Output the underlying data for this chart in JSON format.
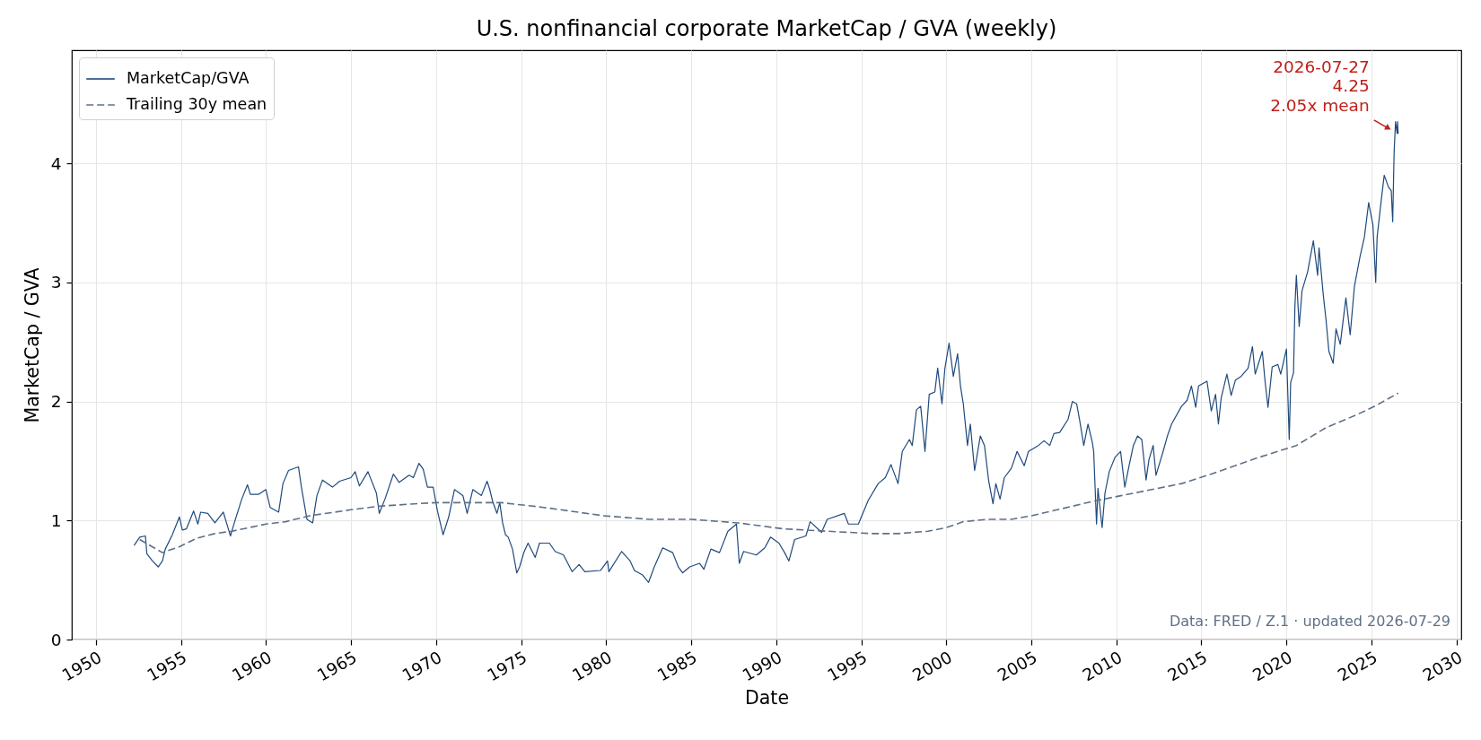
{
  "chart_data": {
    "type": "line",
    "title": "U.S. nonfinancial corporate MarketCap / GVA (weekly)",
    "xlabel": "Date",
    "ylabel": "MarketCap / GVA",
    "xlim": [
      "1948-08-03",
      "2030-04-12"
    ],
    "ylim": [
      0,
      4.95
    ],
    "xticks": [
      "1950",
      "1955",
      "1960",
      "1965",
      "1970",
      "1975",
      "1980",
      "1985",
      "1990",
      "1995",
      "2000",
      "2005",
      "2010",
      "2015",
      "2020",
      "2025",
      "2030"
    ],
    "yticks": [
      0,
      1,
      2,
      3,
      4
    ],
    "grid": true,
    "legend": "top left",
    "series": [
      {
        "name": "MarketCap/GVA",
        "color": "#1f4a7c",
        "line_style": "solid",
        "x": [
          "1952-04",
          "1952-08",
          "1952-12",
          "1953-01",
          "1953-05",
          "1953-09",
          "1953-12",
          "1954-02",
          "1954-07",
          "1954-12",
          "1955-02",
          "1955-05",
          "1955-10",
          "1956-01",
          "1956-03",
          "1956-08",
          "1957-01",
          "1957-07",
          "1957-12",
          "1958-03",
          "1958-08",
          "1958-12",
          "1959-02",
          "1959-08",
          "1960-01",
          "1960-04",
          "1960-10",
          "1961-01",
          "1961-05",
          "1961-12",
          "1962-02",
          "1962-06",
          "1962-10",
          "1963-01",
          "1963-05",
          "1963-12",
          "1964-05",
          "1965-01",
          "1965-04",
          "1965-07",
          "1966-01",
          "1966-07",
          "1966-09",
          "1967-01",
          "1967-07",
          "1967-11",
          "1968-06",
          "1968-09",
          "1969-01",
          "1969-04",
          "1969-07",
          "1969-11",
          "1970-02",
          "1970-06",
          "1970-10",
          "1971-02",
          "1971-08",
          "1971-11",
          "1972-03",
          "1972-09",
          "1973-01",
          "1973-03",
          "1973-05",
          "1973-08",
          "1973-10",
          "1973-12",
          "1974-02",
          "1974-04",
          "1974-07",
          "1974-10",
          "1974-12",
          "1975-03",
          "1975-06",
          "1975-11",
          "1976-02",
          "1976-09",
          "1977-01",
          "1977-07",
          "1978-01",
          "1978-06",
          "1978-10",
          "1979-09",
          "1980-02",
          "1980-03",
          "1980-12",
          "1981-06",
          "1981-09",
          "1982-03",
          "1982-07",
          "1982-11",
          "1983-05",
          "1983-12",
          "1984-04",
          "1984-07",
          "1984-12",
          "1985-07",
          "1985-10",
          "1986-03",
          "1986-09",
          "1987-03",
          "1987-09",
          "1987-11",
          "1988-02",
          "1988-11",
          "1989-05",
          "1989-09",
          "1990-03",
          "1990-07",
          "1990-10",
          "1991-02",
          "1991-10",
          "1992-01",
          "1992-09",
          "1993-01",
          "1994-01",
          "1994-04",
          "1994-11",
          "1995-06",
          "1996-01",
          "1996-06",
          "1996-10",
          "1997-03",
          "1997-06",
          "1997-11",
          "1998-01",
          "1998-04",
          "1998-07",
          "1998-10",
          "1999-01",
          "1999-05",
          "1999-07",
          "1999-10",
          "1999-12",
          "2000-03",
          "2000-06",
          "2000-09",
          "2000-11",
          "2001-01",
          "2001-04",
          "2001-06",
          "2001-09",
          "2002-01",
          "2002-04",
          "2002-07",
          "2002-10",
          "2002-12",
          "2003-03",
          "2003-06",
          "2003-11",
          "2004-03",
          "2004-08",
          "2004-11",
          "2005-06",
          "2005-10",
          "2006-02",
          "2006-05",
          "2006-09",
          "2007-03",
          "2007-06",
          "2007-09",
          "2007-11",
          "2008-02",
          "2008-05",
          "2008-08",
          "2008-09",
          "2008-11",
          "2008-12",
          "2009-03",
          "2009-05",
          "2009-08",
          "2009-12",
          "2010-04",
          "2010-07",
          "2010-10",
          "2011-01",
          "2011-04",
          "2011-07",
          "2011-10",
          "2011-12",
          "2012-03",
          "2012-05",
          "2012-10",
          "2013-01",
          "2013-04",
          "2013-11",
          "2014-03",
          "2014-06",
          "2014-09",
          "2014-11",
          "2015-05",
          "2015-08",
          "2015-11",
          "2016-01",
          "2016-03",
          "2016-07",
          "2016-10",
          "2017-01",
          "2017-05",
          "2017-10",
          "2018-01",
          "2018-03",
          "2018-08",
          "2018-10",
          "2018-12",
          "2019-03",
          "2019-07",
          "2019-09",
          "2020-01",
          "2020-03",
          "2020-04",
          "2020-06",
          "2020-07",
          "2020-08",
          "2020-10",
          "2020-12",
          "2021-04",
          "2021-08",
          "2021-11",
          "2021-12",
          "2022-03",
          "2022-05",
          "2022-07",
          "2022-10",
          "2022-12",
          "2023-03",
          "2023-07",
          "2023-10",
          "2024-01",
          "2024-05",
          "2024-08",
          "2024-11",
          "2025-02",
          "2025-04",
          "2025-05",
          "2025-08",
          "2025-10",
          "2026-01",
          "2026-03",
          "2026-04",
          "2026-05",
          "2026-06",
          "2026-07-05",
          "2026-07-15",
          "2026-07-27"
        ],
        "values": [
          0.79,
          0.86,
          0.87,
          0.72,
          0.66,
          0.61,
          0.66,
          0.76,
          0.88,
          1.03,
          0.92,
          0.93,
          1.08,
          0.97,
          1.07,
          1.06,
          0.98,
          1.07,
          0.87,
          0.99,
          1.18,
          1.3,
          1.22,
          1.22,
          1.26,
          1.11,
          1.07,
          1.31,
          1.42,
          1.45,
          1.28,
          1.01,
          0.98,
          1.21,
          1.34,
          1.28,
          1.33,
          1.36,
          1.41,
          1.29,
          1.41,
          1.23,
          1.06,
          1.18,
          1.39,
          1.32,
          1.38,
          1.36,
          1.48,
          1.43,
          1.28,
          1.28,
          1.08,
          0.88,
          1.03,
          1.26,
          1.21,
          1.06,
          1.26,
          1.21,
          1.33,
          1.26,
          1.16,
          1.06,
          1.15,
          0.98,
          0.88,
          0.86,
          0.76,
          0.56,
          0.61,
          0.73,
          0.81,
          0.69,
          0.81,
          0.81,
          0.74,
          0.71,
          0.57,
          0.63,
          0.57,
          0.58,
          0.66,
          0.57,
          0.74,
          0.66,
          0.58,
          0.54,
          0.48,
          0.61,
          0.77,
          0.73,
          0.61,
          0.56,
          0.61,
          0.64,
          0.59,
          0.76,
          0.73,
          0.91,
          0.97,
          0.64,
          0.74,
          0.71,
          0.77,
          0.86,
          0.81,
          0.73,
          0.66,
          0.84,
          0.87,
          0.99,
          0.9,
          1.01,
          1.06,
          0.97,
          0.97,
          1.17,
          1.31,
          1.36,
          1.47,
          1.31,
          1.58,
          1.68,
          1.63,
          1.93,
          1.96,
          1.58,
          2.06,
          2.08,
          2.28,
          1.98,
          2.27,
          2.49,
          2.21,
          2.4,
          2.13,
          1.98,
          1.63,
          1.81,
          1.42,
          1.71,
          1.63,
          1.33,
          1.14,
          1.31,
          1.18,
          1.36,
          1.44,
          1.58,
          1.46,
          1.58,
          1.63,
          1.67,
          1.63,
          1.73,
          1.74,
          1.85,
          2.0,
          1.98,
          1.85,
          1.63,
          1.81,
          1.66,
          1.58,
          0.97,
          1.27,
          0.94,
          1.23,
          1.41,
          1.53,
          1.58,
          1.28,
          1.46,
          1.63,
          1.71,
          1.68,
          1.34,
          1.51,
          1.63,
          1.38,
          1.58,
          1.71,
          1.81,
          1.96,
          2.01,
          2.13,
          1.95,
          2.13,
          2.17,
          1.92,
          2.06,
          1.81,
          2.03,
          2.23,
          2.05,
          2.18,
          2.21,
          2.28,
          2.46,
          2.23,
          2.42,
          2.16,
          1.95,
          2.29,
          2.31,
          2.23,
          2.44,
          1.68,
          2.16,
          2.24,
          2.8,
          3.06,
          2.63,
          2.93,
          3.09,
          3.35,
          3.06,
          3.29,
          2.9,
          2.68,
          2.42,
          2.32,
          2.61,
          2.48,
          2.87,
          2.56,
          2.97,
          3.22,
          3.38,
          3.67,
          3.48,
          3.0,
          3.38,
          3.7,
          3.9,
          3.8,
          3.77,
          3.51,
          4.09,
          4.35,
          4.25,
          4.35,
          4.25
        ]
      },
      {
        "name": "Trailing 30y mean",
        "color": "#5f7086",
        "line_style": "dashed",
        "x": [
          "1952-08",
          "1953-12",
          "1954-12",
          "1955-12",
          "1957-01",
          "1958-01",
          "1960-01",
          "1961-03",
          "1962-08",
          "1965-01",
          "1966-09",
          "1968-10",
          "1970-01",
          "1972-01",
          "1973-11",
          "1976-05",
          "1979-11",
          "1982-07",
          "1985-01",
          "1987-10",
          "1990-06",
          "1993-01",
          "1995-09",
          "1997-03",
          "1998-12",
          "2000-01",
          "2001-01",
          "2002-06",
          "2003-11",
          "2005-01",
          "2006-11",
          "2008-08",
          "2010-05",
          "2012-02",
          "2013-11",
          "2015-08",
          "2018-03",
          "2020-08",
          "2022-05",
          "2024-03",
          "2025-05",
          "2026-07-27"
        ],
        "values": [
          0.84,
          0.73,
          0.78,
          0.85,
          0.89,
          0.91,
          0.97,
          0.99,
          1.04,
          1.09,
          1.12,
          1.14,
          1.15,
          1.15,
          1.15,
          1.11,
          1.04,
          1.01,
          1.01,
          0.98,
          0.93,
          0.91,
          0.89,
          0.89,
          0.91,
          0.94,
          0.99,
          1.01,
          1.01,
          1.04,
          1.1,
          1.16,
          1.21,
          1.26,
          1.31,
          1.39,
          1.52,
          1.63,
          1.78,
          1.89,
          1.97,
          2.07
        ]
      }
    ],
    "annotations": [
      {
        "text": "2026-07-27\n4.25\n2.05x mean",
        "x": "2026-07-27",
        "y": 4.25
      },
      "Data: FRED / Z.1 · updated 2026-07-29"
    ]
  }
}
